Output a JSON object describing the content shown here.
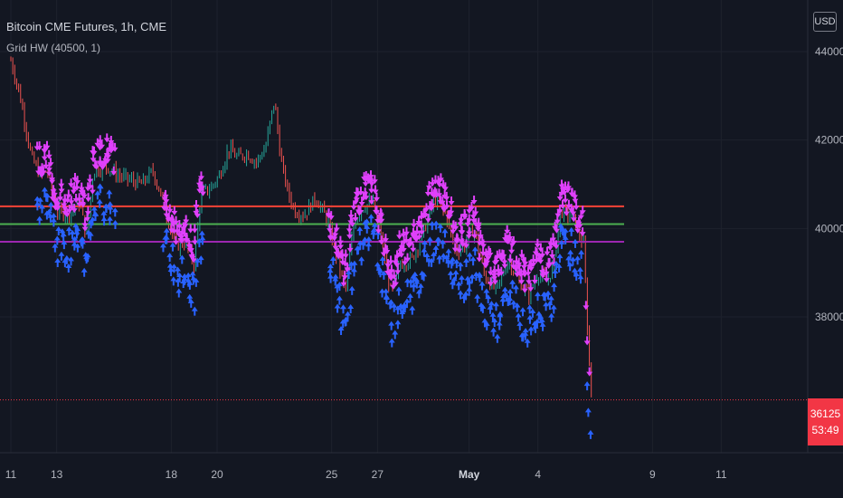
{
  "header": {
    "title": "Bitcoin CME Futures, 1h, CME",
    "indicator": "Grid HW (40500, 1)"
  },
  "price_axis": {
    "currency": "USD",
    "last_price": "36125",
    "countdown": "53:49"
  },
  "colors": {
    "background": "#131722",
    "grid": "#1e222d",
    "axis_text": "#b2b5be",
    "up_candle": "#26a69a",
    "down_candle": "#ef5350",
    "buy_arrow": "#2962ff",
    "sell_arrow": "#e040fb",
    "grid_upper": "#f44336",
    "grid_mid": "#4caf50",
    "grid_lower": "#9c27b0",
    "last_price": "#f23645"
  },
  "chart_data": {
    "type": "candlestick",
    "symbol": "Bitcoin CME Futures",
    "interval": "1h",
    "y_ticks": [
      38000,
      40000,
      42000,
      44000
    ],
    "x_ticks": [
      "11",
      "13",
      "18",
      "20",
      "25",
      "27",
      "May",
      "4",
      "9",
      "11"
    ],
    "ylim": [
      35100,
      44800
    ],
    "horizontal_levels": [
      {
        "name": "grid-upper",
        "value": 40500,
        "color": "#f44336"
      },
      {
        "name": "grid-mid",
        "value": 40100,
        "color": "#4caf50"
      },
      {
        "name": "grid-lower",
        "value": 39700,
        "color": "#9c27b0"
      }
    ],
    "last_price": 36125,
    "price_path": [
      {
        "x": 11,
        "y": 43800
      },
      {
        "x": 11.4,
        "y": 43000
      },
      {
        "x": 11.9,
        "y": 41600
      },
      {
        "x": 12.3,
        "y": 41200
      },
      {
        "x": 12.6,
        "y": 41300
      },
      {
        "x": 13,
        "y": 40400
      },
      {
        "x": 13.5,
        "y": 40300
      },
      {
        "x": 14,
        "y": 40600
      },
      {
        "x": 14.3,
        "y": 39800
      },
      {
        "x": 14.6,
        "y": 41300
      },
      {
        "x": 15.2,
        "y": 41400
      },
      {
        "x": 15.7,
        "y": 41200
      },
      {
        "x": 16.2,
        "y": 41100
      },
      {
        "x": 16.7,
        "y": 41000
      },
      {
        "x": 17.2,
        "y": 41300
      },
      {
        "x": 17.7,
        "y": 40500
      },
      {
        "x": 18.2,
        "y": 39600
      },
      {
        "x": 18.6,
        "y": 39700
      },
      {
        "x": 19,
        "y": 39200
      },
      {
        "x": 19.3,
        "y": 40800
      },
      {
        "x": 19.7,
        "y": 40900
      },
      {
        "x": 20.1,
        "y": 41200
      },
      {
        "x": 20.5,
        "y": 41800
      },
      {
        "x": 20.9,
        "y": 41600
      },
      {
        "x": 21.3,
        "y": 41700
      },
      {
        "x": 21.7,
        "y": 41500
      },
      {
        "x": 22.1,
        "y": 41800
      },
      {
        "x": 22.5,
        "y": 42900
      },
      {
        "x": 22.8,
        "y": 41500
      },
      {
        "x": 23.1,
        "y": 40800
      },
      {
        "x": 23.4,
        "y": 40400
      },
      {
        "x": 23.8,
        "y": 40300
      },
      {
        "x": 24.3,
        "y": 40700
      },
      {
        "x": 24.8,
        "y": 40200
      },
      {
        "x": 25.3,
        "y": 39200
      },
      {
        "x": 25.6,
        "y": 38600
      },
      {
        "x": 26,
        "y": 40200
      },
      {
        "x": 26.4,
        "y": 40500
      },
      {
        "x": 26.8,
        "y": 40600
      },
      {
        "x": 27.2,
        "y": 39700
      },
      {
        "x": 27.6,
        "y": 38500
      },
      {
        "x": 28,
        "y": 39200
      },
      {
        "x": 28.5,
        "y": 39300
      },
      {
        "x": 29,
        "y": 39900
      },
      {
        "x": 29.5,
        "y": 40700
      },
      {
        "x": 30,
        "y": 40300
      },
      {
        "x": 30.4,
        "y": 39500
      },
      {
        "x": 30.8,
        "y": 39600
      },
      {
        "x": 31.2,
        "y": 40000
      },
      {
        "x": 31.7,
        "y": 38900
      },
      {
        "x": 32.2,
        "y": 38600
      },
      {
        "x": 32.7,
        "y": 39300
      },
      {
        "x": 33.2,
        "y": 38800
      },
      {
        "x": 33.6,
        "y": 38500
      },
      {
        "x": 34,
        "y": 39000
      },
      {
        "x": 34.4,
        "y": 38800
      },
      {
        "x": 34.7,
        "y": 39200
      },
      {
        "x": 35,
        "y": 40400
      },
      {
        "x": 35.3,
        "y": 40300
      },
      {
        "x": 35.6,
        "y": 40200
      },
      {
        "x": 36,
        "y": 39600
      },
      {
        "x": 36.2,
        "y": 37300
      },
      {
        "x": 36.35,
        "y": 36125
      }
    ],
    "bands": {
      "sell_offset": 250,
      "buy_offset": -800,
      "active_ranges": [
        [
          12.2,
          15.5
        ],
        [
          17.7,
          19.4
        ],
        [
          24.9,
          35.9
        ]
      ]
    }
  }
}
